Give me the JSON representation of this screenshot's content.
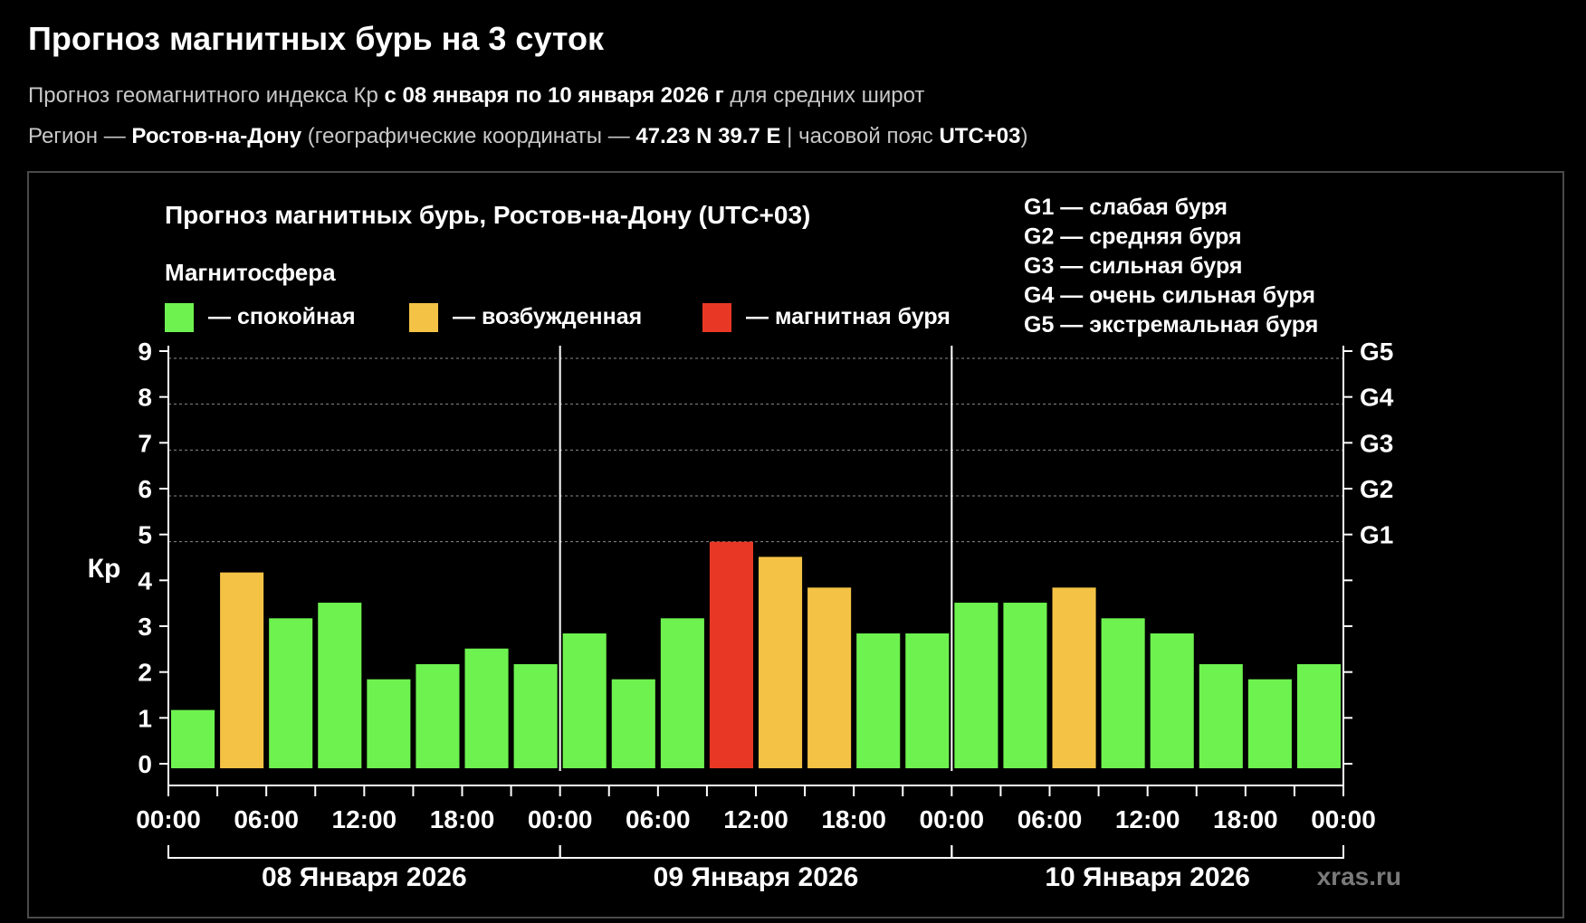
{
  "page": {
    "title": "Прогноз магнитных бурь на 3 суток",
    "line1_prefix": "Прогноз геомагнитного индекса Кр ",
    "line1_bold": "с 08 января по 10 января 2026 г",
    "line1_suffix": " для средних широт",
    "line2_prefix": "Регион — ",
    "line2_region": "Ростов-на-Дону",
    "line2_mid": " (географические координаты — ",
    "line2_coords": "47.23 N 39.7 E",
    "line2_mid2": " | часовой пояс ",
    "line2_tz": "UTC+03",
    "line2_end": ")"
  },
  "chart_data": {
    "type": "bar",
    "title": "Прогноз магнитных бурь, Ростов-на-Дону (UTC+03)",
    "ylabel": "Кр",
    "ylim": [
      0,
      9
    ],
    "yticks": [
      "0",
      "1",
      "2",
      "3",
      "4",
      "5",
      "6",
      "7",
      "8",
      "9"
    ],
    "right_ticks": [
      {
        "level": 5,
        "label": "G1"
      },
      {
        "level": 6,
        "label": "G2"
      },
      {
        "level": 7,
        "label": "G3"
      },
      {
        "level": 8,
        "label": "G4"
      },
      {
        "level": 9,
        "label": "G5"
      }
    ],
    "magnetosphere_title": "Магнитосфера",
    "status_legend": [
      {
        "label": "— спокойная",
        "color": "#6ef24f"
      },
      {
        "label": "— возбужденная",
        "color": "#f4c245"
      },
      {
        "label": "— магнитная буря",
        "color": "#e83825"
      }
    ],
    "g_legend": [
      "G1 — слабая буря",
      "G2 — средняя буря",
      "G3 — сильная буря",
      "G4 — очень сильная буря",
      "G5 — экстремальная буря"
    ],
    "days": [
      "08 Января 2026",
      "09 Января 2026",
      "10 Января 2026"
    ],
    "xticks": [
      "00:00",
      "06:00",
      "12:00",
      "18:00",
      "00:00",
      "06:00",
      "12:00",
      "18:00",
      "00:00",
      "06:00",
      "12:00",
      "18:00",
      "00:00"
    ],
    "values": [
      1.33,
      4.33,
      3.33,
      3.67,
      2.0,
      2.33,
      2.67,
      2.33,
      3.0,
      2.0,
      3.33,
      5.0,
      4.67,
      4.0,
      3.0,
      3.0,
      3.67,
      3.67,
      4.0,
      3.33,
      3.0,
      2.33,
      2.0,
      2.33
    ],
    "status": [
      "quiet",
      "active",
      "quiet",
      "quiet",
      "quiet",
      "quiet",
      "quiet",
      "quiet",
      "quiet",
      "quiet",
      "quiet",
      "storm",
      "active",
      "active",
      "quiet",
      "quiet",
      "quiet",
      "quiet",
      "active",
      "quiet",
      "quiet",
      "quiet",
      "quiet",
      "quiet"
    ],
    "colors": {
      "quiet": "#6ef24f",
      "active": "#f4c245",
      "storm": "#e83825"
    },
    "watermark": "xras.ru",
    "grid": true
  }
}
